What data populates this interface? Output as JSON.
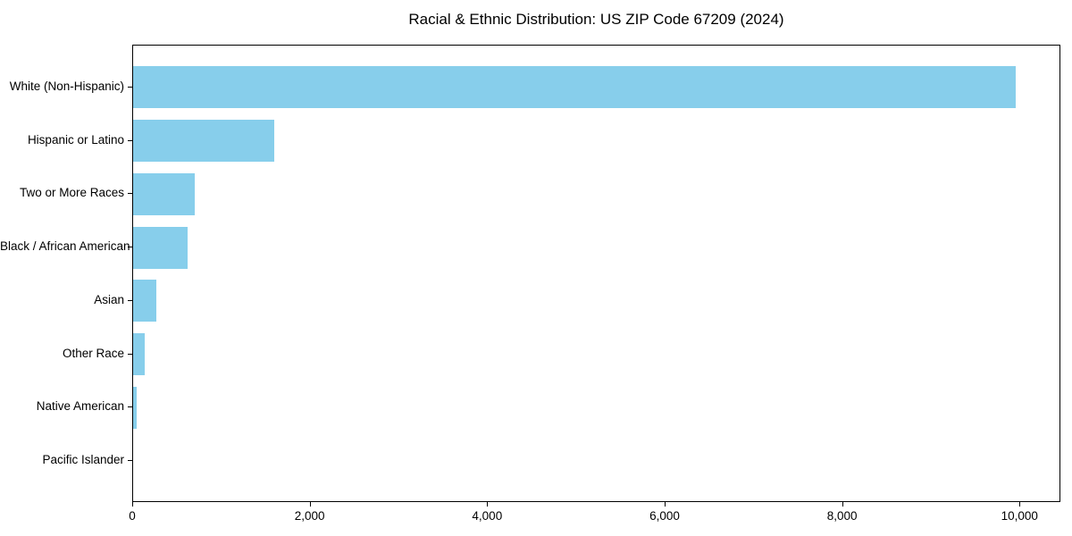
{
  "chart_data": {
    "type": "bar",
    "orientation": "horizontal",
    "title": "Racial & Ethnic Distribution: US ZIP Code 67209 (2024)",
    "categories": [
      "White (Non-Hispanic)",
      "Hispanic or Latino",
      "Two or More Races",
      "Black / African American",
      "Asian",
      "Other Race",
      "Native American",
      "Pacific Islander"
    ],
    "values": [
      9950,
      1590,
      690,
      610,
      260,
      130,
      45,
      0
    ],
    "xlabel": "",
    "ylabel": "",
    "xlim": [
      0,
      10460
    ],
    "x_ticks": [
      0,
      2000,
      4000,
      6000,
      8000,
      10000
    ],
    "x_tick_labels": [
      "0",
      "2,000",
      "4,000",
      "6,000",
      "8,000",
      "10,000"
    ],
    "bar_color": "#87CEEB",
    "spine_color": "#000000",
    "text_color": "#000000",
    "grid": false,
    "legend": null,
    "largest_bar_first": true
  }
}
